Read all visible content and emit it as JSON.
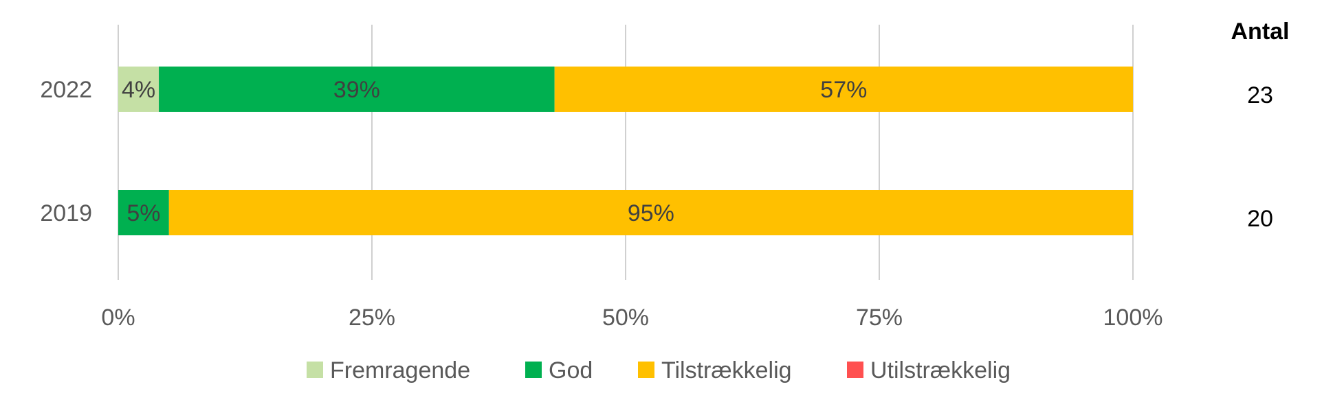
{
  "chart_data": {
    "type": "bar",
    "orientation": "horizontal",
    "stacked": true,
    "categories": [
      "2022",
      "2019"
    ],
    "series": [
      {
        "name": "Fremragende",
        "color": "#c5e0a5",
        "values": [
          4,
          0
        ],
        "labels": [
          "4%",
          ""
        ]
      },
      {
        "name": "God",
        "color": "#00b050",
        "values": [
          39,
          5
        ],
        "labels": [
          "39%",
          "5%"
        ]
      },
      {
        "name": "Tilstrækkelig",
        "color": "#ffc000",
        "values": [
          57,
          95
        ],
        "labels": [
          "57%",
          "95%"
        ]
      },
      {
        "name": "Utilstrækkelig",
        "color": "#ff5050",
        "values": [
          0,
          0
        ],
        "labels": [
          "",
          ""
        ]
      }
    ],
    "x_ticks": [
      "0%",
      "25%",
      "50%",
      "75%",
      "100%"
    ],
    "xlim": [
      0,
      100
    ],
    "grid": "vertical",
    "legend_position": "bottom",
    "counts": {
      "header": "Antal",
      "values": [
        "23",
        "20"
      ]
    }
  }
}
